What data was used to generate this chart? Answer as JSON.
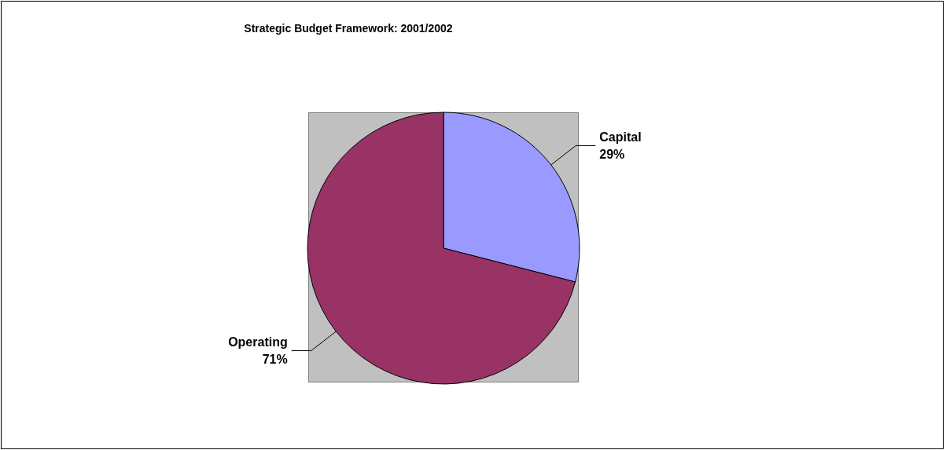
{
  "chart_data": {
    "type": "pie",
    "title": "Strategic Budget Framework: 2001/2002",
    "categories": [
      "Capital",
      "Operating"
    ],
    "values": [
      29,
      71
    ],
    "colors": [
      "#9999ff",
      "#993366"
    ],
    "value_labels": [
      "29%",
      "71%"
    ],
    "legend": false
  }
}
